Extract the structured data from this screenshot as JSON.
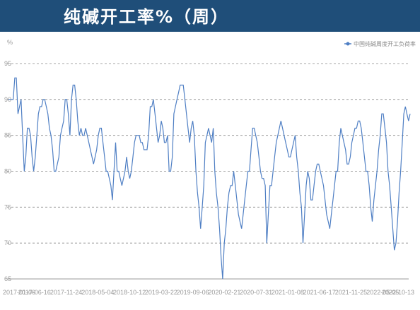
{
  "header": {
    "title": "纯碱开工率%（周）"
  },
  "colors": {
    "header_bg": "#1f4e79",
    "line": "#4f7fc4",
    "grid": "#888888"
  },
  "chart_data": {
    "type": "line",
    "title": "纯碱开工率%（周）",
    "ylabel": "%",
    "ylim": [
      65,
      95
    ],
    "yticks": [
      65,
      70,
      75,
      80,
      85,
      90,
      95
    ],
    "grid": "horizontal-dashed",
    "legend_position": "top-right",
    "xtick_labels": [
      "2017-01-06",
      "2017-06-16",
      "2017-11-24",
      "2018-05-04",
      "2018-10-12",
      "2019-03-22",
      "2019-09-06",
      "2020-02-21",
      "2020-07-31",
      "2021-01-08",
      "2021-06-17",
      "2021-11-25",
      "2022-05-05",
      "2022-10-13"
    ],
    "series": [
      {
        "name": "中国纯碱周度开工负荷率",
        "x_start": "2017-01-06",
        "x_end": "2022-10-13",
        "values": [
          90,
          90,
          90,
          90,
          93,
          93,
          88,
          89,
          90,
          85,
          80,
          82,
          86,
          86,
          85,
          82,
          80,
          82,
          85,
          88,
          89,
          89,
          90,
          90,
          89,
          88,
          86,
          85,
          83,
          80,
          80,
          81,
          82,
          85,
          86,
          87,
          90,
          90,
          88,
          85,
          90,
          92,
          92,
          90,
          87,
          85,
          86,
          85,
          85,
          86,
          85,
          84,
          83,
          82,
          81,
          82,
          83,
          85,
          86,
          86,
          84,
          82,
          80,
          80,
          79,
          78,
          76,
          80,
          84,
          80,
          80,
          79,
          78,
          79,
          80,
          82,
          80,
          79,
          80,
          82,
          84,
          85,
          85,
          85,
          84,
          84,
          83,
          83,
          83,
          85,
          89,
          89,
          90,
          88,
          86,
          84,
          85,
          87,
          86,
          84,
          84,
          85,
          80,
          80,
          82,
          88,
          89,
          90,
          91,
          92,
          92,
          92,
          90,
          88,
          86,
          84,
          86,
          87,
          85,
          80,
          77,
          75,
          72,
          75,
          78,
          84,
          85,
          86,
          85,
          84,
          86,
          80,
          77,
          75,
          72,
          68,
          65,
          70,
          72,
          75,
          77,
          78,
          78,
          80,
          78,
          76,
          74,
          73,
          72,
          74,
          76,
          78,
          80,
          80,
          83,
          86,
          86,
          85,
          84,
          82,
          80,
          79,
          79,
          78,
          70,
          74,
          78,
          78,
          80,
          82,
          84,
          85,
          86,
          87,
          86,
          85,
          84,
          83,
          82,
          82,
          83,
          84,
          85,
          82,
          80,
          77,
          75,
          70,
          74,
          78,
          80,
          79,
          76,
          76,
          78,
          80,
          81,
          81,
          80,
          79,
          78,
          76,
          74,
          73,
          72,
          74,
          76,
          78,
          80,
          80,
          84,
          86,
          85,
          84,
          83,
          81,
          81,
          82,
          84,
          85,
          86,
          86,
          87,
          87,
          86,
          84,
          82,
          80,
          80,
          78,
          75,
          73,
          76,
          78,
          80,
          83,
          85,
          88,
          88,
          86,
          84,
          80,
          78,
          75,
          72,
          69,
          70,
          73,
          77,
          80,
          84,
          88,
          89,
          88,
          87,
          88
        ]
      }
    ]
  }
}
